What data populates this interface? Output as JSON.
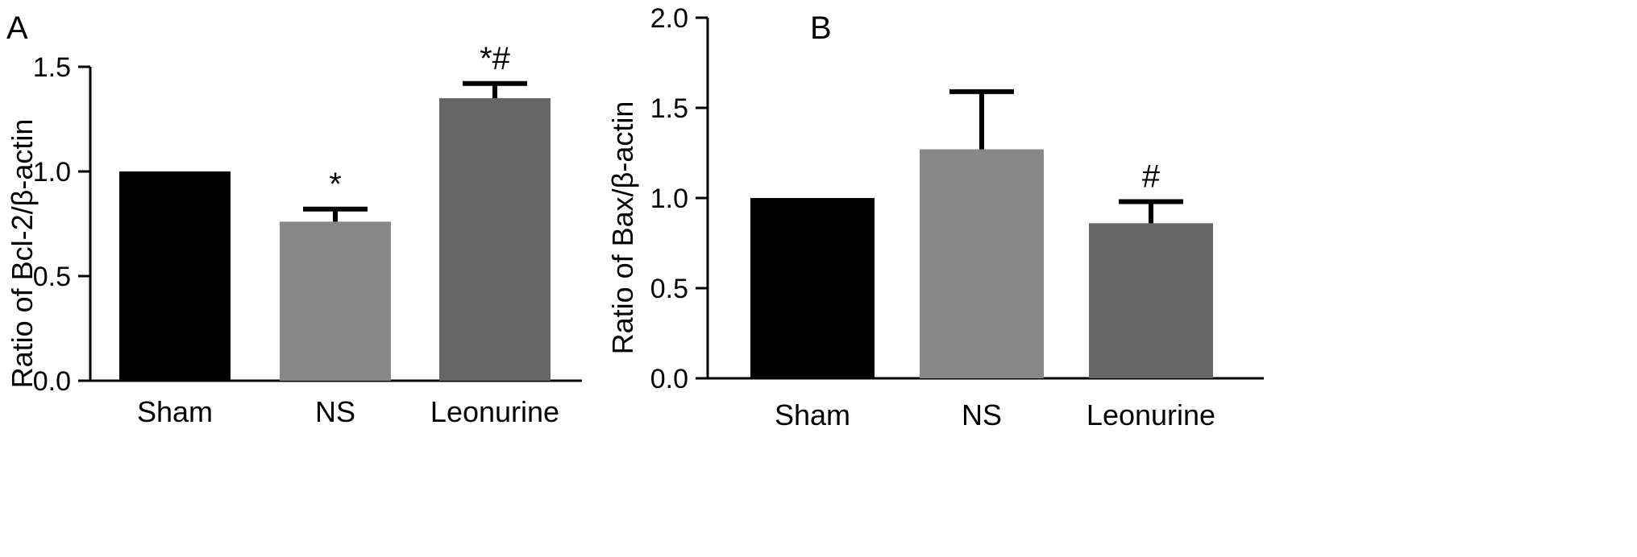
{
  "chart_data": [
    {
      "type": "bar",
      "panel": "A",
      "categories": [
        "Sham",
        "NS",
        "Leonurine"
      ],
      "values": [
        1.0,
        0.76,
        1.35
      ],
      "errors": [
        0.0,
        0.06,
        0.07
      ],
      "annotations": [
        "",
        "*",
        "*#"
      ],
      "colors": [
        "#000000",
        "#878787",
        "#666666"
      ],
      "ylabel": "Ratio of Bcl-2/β-actin",
      "ylim": [
        0,
        1.5
      ],
      "yticks": [
        "0.0",
        "0.5",
        "1.0",
        "1.5"
      ],
      "ytick_values": [
        0,
        0.5,
        1.0,
        1.5
      ],
      "grid": false
    },
    {
      "type": "bar",
      "panel": "B",
      "categories": [
        "Sham",
        "NS",
        "Leonurine"
      ],
      "values": [
        1.0,
        1.27,
        0.86
      ],
      "errors": [
        0.0,
        0.32,
        0.12
      ],
      "annotations": [
        "",
        "",
        "#"
      ],
      "colors": [
        "#000000",
        "#878787",
        "#666666"
      ],
      "ylabel": "Ratio of Bax/β-actin",
      "ylim": [
        0,
        2.0
      ],
      "yticks": [
        "0.0",
        "0.5",
        "1.0",
        "1.5",
        "2.0"
      ],
      "ytick_values": [
        0,
        0.5,
        1.0,
        1.5,
        2.0
      ],
      "grid": false
    }
  ]
}
